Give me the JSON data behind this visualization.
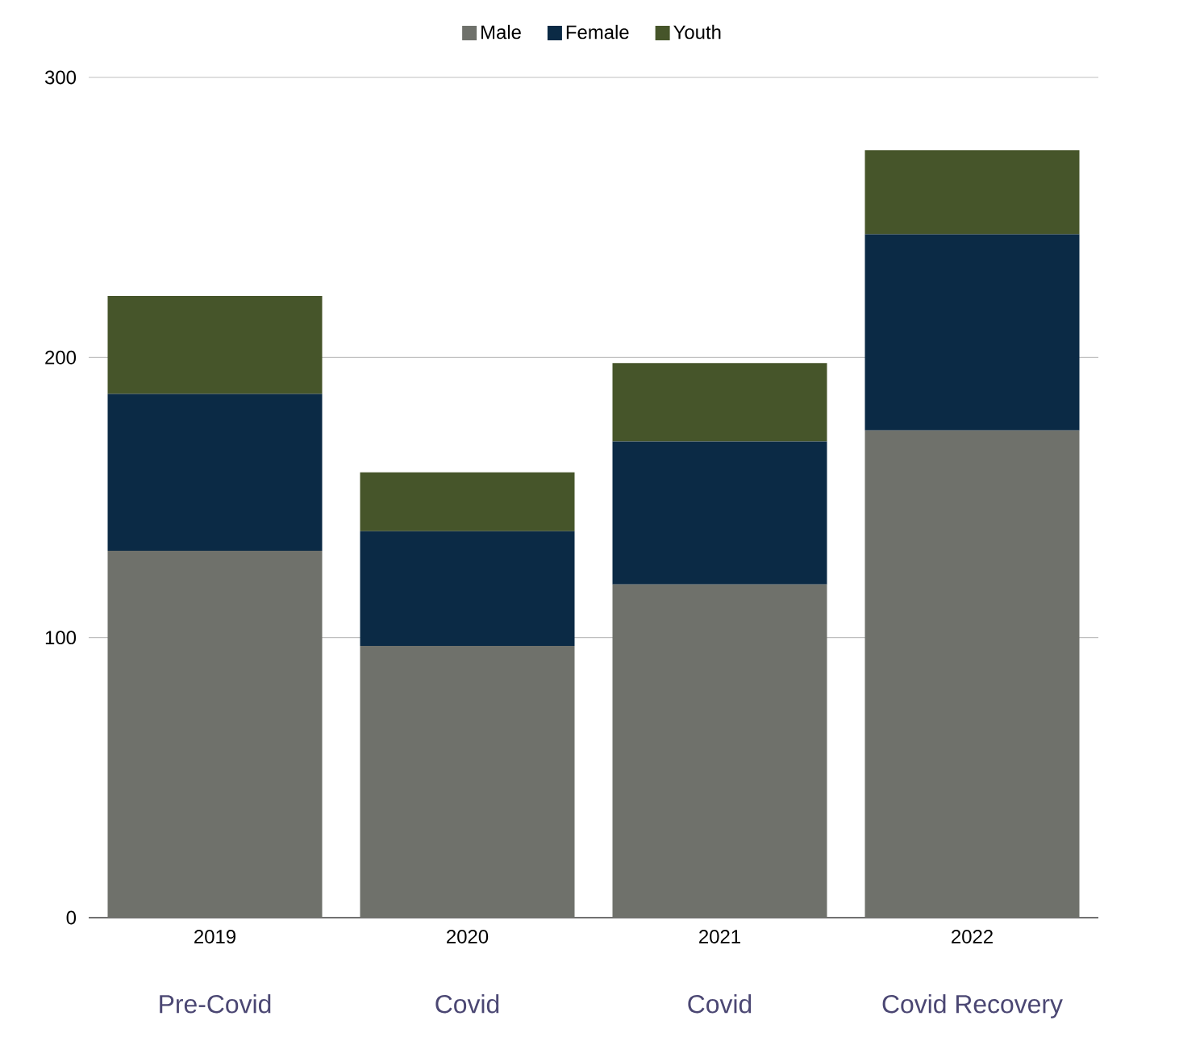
{
  "chart_data": {
    "type": "bar",
    "stacked": true,
    "categories": [
      "2019",
      "2020",
      "2021",
      "2022"
    ],
    "series": [
      {
        "name": "Male",
        "color": "#6f716b",
        "values": [
          131,
          97,
          119,
          174
        ]
      },
      {
        "name": "Female",
        "color": "#0b2a45",
        "values": [
          56,
          41,
          51,
          70
        ]
      },
      {
        "name": "Youth",
        "color": "#46552a",
        "values": [
          35,
          21,
          28,
          30
        ]
      }
    ],
    "annotations": [
      "Pre-Covid",
      "Covid",
      "Covid",
      "Covid Recovery"
    ],
    "ylim": [
      0,
      300
    ],
    "yticks": [
      0,
      100,
      200,
      300
    ],
    "grid": "y",
    "legend": "top"
  }
}
